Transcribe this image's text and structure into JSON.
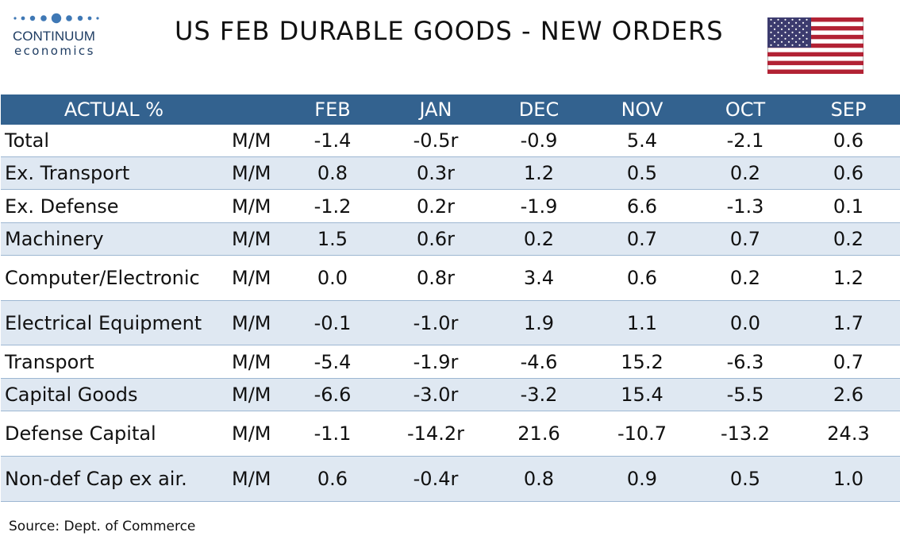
{
  "brand": {
    "name": "CONTINUUM",
    "sub": "economics",
    "colors": {
      "navy": "#1f3d63",
      "dots": "#3f78b5"
    }
  },
  "title": "US FEB DURABLE GOODS - NEW ORDERS",
  "flag": {
    "icon": "us-flag-icon",
    "colors": {
      "red": "#b22234",
      "white": "#ffffff",
      "blue": "#3c3b6e"
    }
  },
  "table": {
    "header": {
      "label": "ACTUAL %",
      "columns": [
        "FEB",
        "JAN",
        "DEC",
        "NOV",
        "OCT",
        "SEP"
      ],
      "bg": "#33628f"
    },
    "rows": [
      {
        "label": "Total",
        "unit": "M/M",
        "values": [
          "-1.4",
          "-0.5r",
          "-0.9",
          "5.4",
          "-2.1",
          "0.6"
        ]
      },
      {
        "label": "Ex. Transport",
        "unit": "M/M",
        "values": [
          "0.8",
          "0.3r",
          "1.2",
          "0.5",
          "0.2",
          "0.6"
        ]
      },
      {
        "label": "Ex. Defense",
        "unit": "M/M",
        "values": [
          "-1.2",
          "0.2r",
          "-1.9",
          "6.6",
          "-1.3",
          "0.1"
        ]
      },
      {
        "label": "Machinery",
        "unit": "M/M",
        "values": [
          "1.5",
          "0.6r",
          "0.2",
          "0.7",
          "0.7",
          "0.2"
        ]
      },
      {
        "label": "Computer/Electronic",
        "unit": "M/M",
        "values": [
          "0.0",
          "0.8r",
          "3.4",
          "0.6",
          "0.2",
          "1.2"
        ]
      },
      {
        "label": "Electrical Equipment",
        "unit": "M/M",
        "values": [
          "-0.1",
          "-1.0r",
          "1.9",
          "1.1",
          "0.0",
          "1.7"
        ]
      },
      {
        "label": "Transport",
        "unit": "M/M",
        "values": [
          "-5.4",
          "-1.9r",
          "-4.6",
          "15.2",
          "-6.3",
          "0.7"
        ]
      },
      {
        "label": "Capital Goods",
        "unit": "M/M",
        "values": [
          "-6.6",
          "-3.0r",
          "-3.2",
          "15.4",
          "-5.5",
          "2.6"
        ]
      },
      {
        "label": "Defense Capital",
        "unit": "M/M",
        "values": [
          "-1.1",
          "-14.2r",
          "21.6",
          "-10.7",
          "-13.2",
          "24.3"
        ]
      },
      {
        "label": "Non-def Cap ex air.",
        "unit": "M/M",
        "values": [
          "0.6",
          "-0.4r",
          "0.8",
          "0.9",
          "0.5",
          "1.0"
        ]
      }
    ],
    "shade_color": "#dfe8f2"
  },
  "source": "Source: Dept. of Commerce"
}
